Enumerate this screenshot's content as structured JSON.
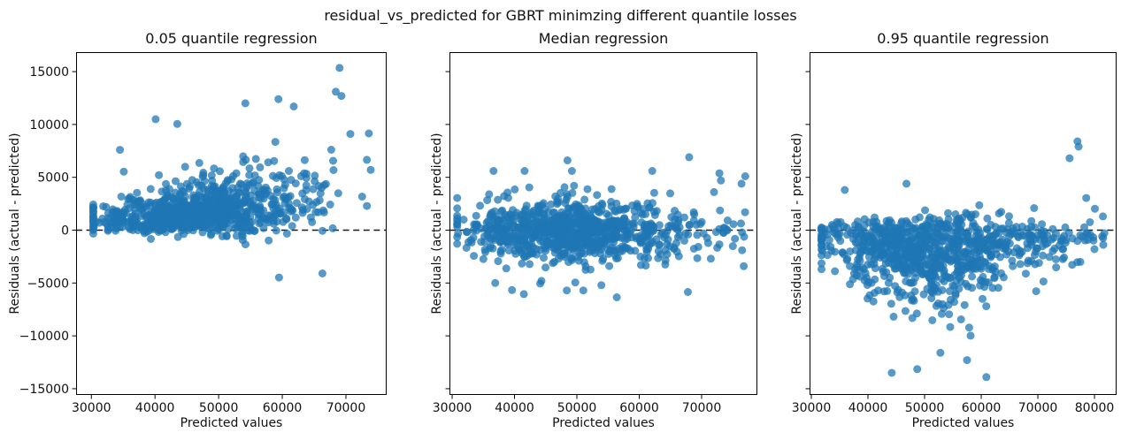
{
  "figure": {
    "suptitle": "residual_vs_predicted for GBRT minimzing different quantile losses",
    "background": "#ffffff",
    "marker_color": "#1f77b4",
    "marker_alpha": 0.75,
    "zero_line": {
      "y": 0,
      "style": "dashed",
      "color": "#1a1a1a"
    }
  },
  "chart_data": [
    {
      "type": "scatter",
      "title": "0.05 quantile regression",
      "xlabel": "Predicted values",
      "ylabel": "Residuals (actual - predicted)",
      "xticks": [
        30000,
        40000,
        50000,
        60000,
        70000
      ],
      "xtick_labels": [
        "30000",
        "40000",
        "50000",
        "60000",
        "70000"
      ],
      "yticks": [
        -15000,
        -10000,
        -5000,
        0,
        5000,
        10000,
        15000
      ],
      "ytick_labels": [
        "−15000",
        "−10000",
        "−5000",
        "0",
        "5000",
        "10000",
        "15000"
      ],
      "show_ytick_labels": true,
      "xlim": [
        27600,
        76400
      ],
      "ylim": [
        -15590,
        16843
      ],
      "grid": false,
      "legend": null,
      "hline": 0,
      "n_points": 900,
      "seed": 101,
      "x_dist": {
        "mean": 46800,
        "sd": 8000,
        "min": 30300,
        "max": 73300,
        "tail_frac": 0.05,
        "tail_min": 58000,
        "tail_max": 73500
      },
      "y_model": {
        "kind": "quantile_low",
        "base": 750,
        "slope": 2750
      },
      "outliers": [
        [
          69000,
          15350
        ],
        [
          68400,
          13100
        ],
        [
          69300,
          12700
        ],
        [
          59400,
          12400
        ],
        [
          54200,
          12000
        ],
        [
          61800,
          11700
        ],
        [
          40100,
          10500
        ],
        [
          43500,
          10050
        ],
        [
          34500,
          7600
        ],
        [
          73600,
          9150
        ],
        [
          73900,
          5700
        ],
        [
          59500,
          -4480
        ],
        [
          66300,
          -4100
        ]
      ]
    },
    {
      "type": "scatter",
      "title": "Median regression",
      "xlabel": "Predicted values",
      "ylabel": "Residuals (actual - predicted)",
      "xticks": [
        30000,
        40000,
        50000,
        60000,
        70000
      ],
      "xtick_labels": [
        "30000",
        "40000",
        "50000",
        "60000",
        "70000"
      ],
      "yticks": [
        -15000,
        -10000,
        -5000,
        0,
        5000,
        10000,
        15000
      ],
      "ytick_labels": [],
      "show_ytick_labels": false,
      "xlim": [
        29570,
        78940
      ],
      "ylim": [
        -15590,
        16843
      ],
      "grid": false,
      "legend": null,
      "hline": 0,
      "n_points": 900,
      "seed": 202,
      "x_dist": {
        "mean": 48800,
        "sd": 8400,
        "min": 30800,
        "max": 77400,
        "tail_frac": 0.06,
        "tail_min": 60000,
        "tail_max": 77000
      },
      "y_model": {
        "kind": "median",
        "core_sd": 1250,
        "wide_sd": 2500
      },
      "outliers": [
        [
          48500,
          6600
        ],
        [
          68000,
          6900
        ],
        [
          73100,
          4700
        ],
        [
          76400,
          4400
        ],
        [
          77000,
          5100
        ],
        [
          56400,
          -6350
        ],
        [
          67800,
          -5850
        ],
        [
          41500,
          -6050
        ],
        [
          36900,
          -5000
        ]
      ]
    },
    {
      "type": "scatter",
      "title": "0.95 quantile regression",
      "xlabel": "Predicted values",
      "ylabel": "Residuals (actual - predicted)",
      "xticks": [
        30000,
        40000,
        50000,
        60000,
        70000,
        80000
      ],
      "xtick_labels": [
        "30000",
        "40000",
        "50000",
        "60000",
        "70000",
        "80000"
      ],
      "yticks": [
        -15000,
        -10000,
        -5000,
        0,
        5000,
        10000,
        15000
      ],
      "ytick_labels": [],
      "show_ytick_labels": false,
      "xlim": [
        29690,
        83900
      ],
      "ylim": [
        -15590,
        16843
      ],
      "grid": false,
      "legend": null,
      "hline": 0,
      "n_points": 900,
      "seed": 303,
      "x_dist": {
        "mean": 50000,
        "sd": 9200,
        "min": 31800,
        "max": 82200,
        "tail_frac": 0.08,
        "tail_min": 62000,
        "tail_max": 82000
      },
      "y_model": {
        "kind": "quantile_high",
        "base": 1300,
        "depth": 1700
      },
      "outliers": [
        [
          77000,
          8400
        ],
        [
          77200,
          7900
        ],
        [
          75600,
          6800
        ],
        [
          46800,
          4400
        ],
        [
          35900,
          3800
        ],
        [
          44200,
          -13500
        ],
        [
          48700,
          -13150
        ],
        [
          60900,
          -13900
        ],
        [
          52800,
          -11600
        ],
        [
          57500,
          -12300
        ],
        [
          81500,
          1300
        ],
        [
          80000,
          -1800
        ],
        [
          32300,
          100
        ]
      ]
    }
  ]
}
